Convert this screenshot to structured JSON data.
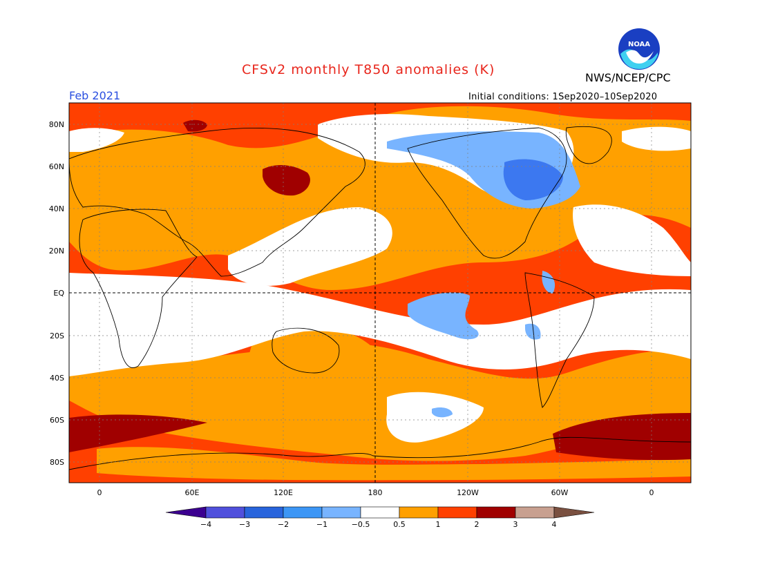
{
  "title": "CFSv2 monthly T850 anomalies (K)",
  "agency": "NWS/NCEP/CPC",
  "logo_text": "NOAA",
  "valid_month": "Feb 2021",
  "initial_conditions": "Initial conditions: 1Sep2020–10Sep2020",
  "map": {
    "lat_labels": [
      "80N",
      "60N",
      "40N",
      "20N",
      "EQ",
      "20S",
      "40S",
      "60S",
      "80S"
    ],
    "lon_labels": [
      "0",
      "60E",
      "120E",
      "180",
      "120W",
      "60W",
      "0"
    ],
    "colors": {
      "background": "#ffffff",
      "warm_1": "#ffa000",
      "warm_2": "#ff4000",
      "warm_3": "#a00000",
      "cool_1": "#78b4ff",
      "cool_2": "#3c78f0",
      "cool_3": "#1e50c8",
      "coast": "#000000"
    }
  },
  "colorbar": {
    "tick_labels": [
      "−4",
      "−3",
      "−2",
      "−1",
      "−0.5",
      "0.5",
      "1",
      "2",
      "3",
      "4"
    ],
    "colors": [
      "#3c0090",
      "#5050dc",
      "#2864dc",
      "#3c96f5",
      "#78b4ff",
      "#ffffff",
      "#ffa000",
      "#ff4000",
      "#a00000",
      "#c8a090",
      "#7a5040"
    ]
  }
}
